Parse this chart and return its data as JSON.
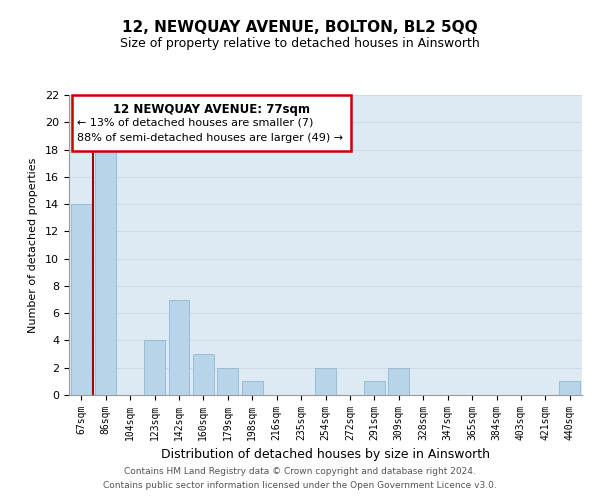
{
  "title": "12, NEWQUAY AVENUE, BOLTON, BL2 5QQ",
  "subtitle": "Size of property relative to detached houses in Ainsworth",
  "xlabel": "Distribution of detached houses by size in Ainsworth",
  "ylabel": "Number of detached properties",
  "categories": [
    "67sqm",
    "86sqm",
    "104sqm",
    "123sqm",
    "142sqm",
    "160sqm",
    "179sqm",
    "198sqm",
    "216sqm",
    "235sqm",
    "254sqm",
    "272sqm",
    "291sqm",
    "309sqm",
    "328sqm",
    "347sqm",
    "365sqm",
    "384sqm",
    "403sqm",
    "421sqm",
    "440sqm"
  ],
  "values": [
    14,
    18,
    0,
    4,
    7,
    3,
    2,
    1,
    0,
    0,
    2,
    0,
    1,
    2,
    0,
    0,
    0,
    0,
    0,
    0,
    1
  ],
  "bar_color": "#b8d4e8",
  "bar_edge_color": "#92b8d4",
  "ylim": [
    0,
    22
  ],
  "yticks": [
    0,
    2,
    4,
    6,
    8,
    10,
    12,
    14,
    16,
    18,
    20,
    22
  ],
  "annotation_title": "12 NEWQUAY AVENUE: 77sqm",
  "annotation_line1": "← 13% of detached houses are smaller (7)",
  "annotation_line2": "88% of semi-detached houses are larger (49) →",
  "annotation_box_color": "#ffffff",
  "annotation_border_color": "#cc0000",
  "red_line_color": "#aa0000",
  "footer_line1": "Contains HM Land Registry data © Crown copyright and database right 2024.",
  "footer_line2": "Contains public sector information licensed under the Open Government Licence v3.0.",
  "grid_color": "#c8dce8",
  "background_color": "#ffffff",
  "plot_bg_color": "#ddeaf4"
}
